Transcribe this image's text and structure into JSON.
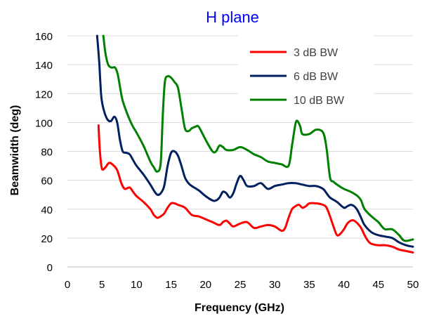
{
  "chart_data": {
    "type": "line",
    "title": "H plane",
    "xlabel": "Frequency  (GHz)",
    "ylabel": "Beamwidth  (deg)",
    "xlim": [
      0,
      50
    ],
    "ylim": [
      0,
      160
    ],
    "xticks": [
      0,
      5,
      10,
      15,
      20,
      25,
      30,
      35,
      40,
      45,
      50
    ],
    "yticks": [
      0,
      20,
      40,
      60,
      80,
      100,
      120,
      140,
      160
    ],
    "grid": {
      "x": false,
      "y": true
    },
    "legend_position": "top-right",
    "series": [
      {
        "name": "3 dB BW",
        "color": "#ff0000",
        "points": [
          [
            4.5,
            98
          ],
          [
            4.7,
            80
          ],
          [
            5.0,
            68
          ],
          [
            5.5,
            69
          ],
          [
            6.0,
            72
          ],
          [
            6.5,
            71
          ],
          [
            7.2,
            67
          ],
          [
            7.8,
            58
          ],
          [
            8.3,
            54
          ],
          [
            9.0,
            55
          ],
          [
            9.5,
            52
          ],
          [
            10.0,
            49
          ],
          [
            11.0,
            45
          ],
          [
            12.0,
            40
          ],
          [
            12.5,
            36
          ],
          [
            13.0,
            34
          ],
          [
            13.5,
            35
          ],
          [
            14.0,
            37
          ],
          [
            14.5,
            41
          ],
          [
            15.0,
            44
          ],
          [
            15.5,
            44
          ],
          [
            16.0,
            43
          ],
          [
            17.0,
            41
          ],
          [
            18.0,
            36
          ],
          [
            19.0,
            35
          ],
          [
            20.0,
            33
          ],
          [
            21.0,
            31
          ],
          [
            22.0,
            29
          ],
          [
            22.5,
            31
          ],
          [
            23.0,
            32
          ],
          [
            23.5,
            30
          ],
          [
            24.0,
            28
          ],
          [
            25.0,
            30
          ],
          [
            26.0,
            31
          ],
          [
            27.0,
            27
          ],
          [
            28.0,
            28
          ],
          [
            29.0,
            29
          ],
          [
            30.0,
            28
          ],
          [
            31.0,
            25
          ],
          [
            31.5,
            27
          ],
          [
            32.0,
            34
          ],
          [
            32.5,
            40
          ],
          [
            33.0,
            42
          ],
          [
            33.5,
            43
          ],
          [
            34.0,
            41
          ],
          [
            34.5,
            42
          ],
          [
            35.0,
            44
          ],
          [
            36.0,
            44
          ],
          [
            37.0,
            43
          ],
          [
            37.5,
            41
          ],
          [
            38.0,
            35
          ],
          [
            38.5,
            28
          ],
          [
            39.0,
            22
          ],
          [
            39.5,
            23
          ],
          [
            40.0,
            26
          ],
          [
            40.5,
            30
          ],
          [
            41.0,
            32
          ],
          [
            41.5,
            32
          ],
          [
            42.0,
            30
          ],
          [
            42.5,
            27
          ],
          [
            43.0,
            22
          ],
          [
            43.5,
            18
          ],
          [
            44.0,
            16
          ],
          [
            45.0,
            15
          ],
          [
            46.0,
            15
          ],
          [
            47.0,
            14
          ],
          [
            48.0,
            12
          ],
          [
            49.0,
            11
          ],
          [
            50.0,
            10
          ]
        ]
      },
      {
        "name": "6 dB BW",
        "color": "#002060",
        "points": [
          [
            4.3,
            160
          ],
          [
            4.6,
            142
          ],
          [
            4.9,
            118
          ],
          [
            5.3,
            108
          ],
          [
            5.8,
            102
          ],
          [
            6.3,
            101
          ],
          [
            6.8,
            104
          ],
          [
            7.2,
            100
          ],
          [
            7.6,
            88
          ],
          [
            8.0,
            80
          ],
          [
            8.5,
            79
          ],
          [
            9.0,
            78
          ],
          [
            9.5,
            74
          ],
          [
            10.0,
            70
          ],
          [
            11.0,
            64
          ],
          [
            12.0,
            57
          ],
          [
            12.5,
            53
          ],
          [
            13.0,
            50
          ],
          [
            13.5,
            51
          ],
          [
            14.0,
            56
          ],
          [
            14.5,
            70
          ],
          [
            15.0,
            79
          ],
          [
            15.5,
            80
          ],
          [
            16.0,
            77
          ],
          [
            16.5,
            70
          ],
          [
            17.0,
            62
          ],
          [
            17.5,
            58
          ],
          [
            18.0,
            56
          ],
          [
            19.0,
            53
          ],
          [
            20.0,
            49
          ],
          [
            21.0,
            46
          ],
          [
            21.5,
            46
          ],
          [
            22.0,
            48
          ],
          [
            22.5,
            52
          ],
          [
            23.0,
            51
          ],
          [
            23.5,
            48
          ],
          [
            24.0,
            51
          ],
          [
            24.5,
            58
          ],
          [
            25.0,
            63
          ],
          [
            25.5,
            60
          ],
          [
            26.0,
            56
          ],
          [
            27.0,
            56
          ],
          [
            28.0,
            58
          ],
          [
            29.0,
            54
          ],
          [
            30.0,
            56
          ],
          [
            31.0,
            57
          ],
          [
            32.0,
            58
          ],
          [
            33.0,
            58
          ],
          [
            34.0,
            57
          ],
          [
            35.0,
            56
          ],
          [
            36.0,
            56
          ],
          [
            37.0,
            54
          ],
          [
            37.5,
            51
          ],
          [
            38.0,
            48
          ],
          [
            39.0,
            45
          ],
          [
            40.0,
            41
          ],
          [
            40.5,
            42
          ],
          [
            41.0,
            43
          ],
          [
            41.5,
            42
          ],
          [
            42.0,
            39
          ],
          [
            42.5,
            34
          ],
          [
            43.0,
            29
          ],
          [
            44.0,
            24
          ],
          [
            45.0,
            22
          ],
          [
            46.0,
            21
          ],
          [
            47.0,
            20
          ],
          [
            48.0,
            17
          ],
          [
            49.0,
            15
          ],
          [
            50.0,
            14
          ]
        ]
      },
      {
        "name": "10 dB BW",
        "color": "#008000",
        "points": [
          [
            5.2,
            160
          ],
          [
            5.5,
            148
          ],
          [
            5.9,
            140
          ],
          [
            6.4,
            138
          ],
          [
            6.9,
            138
          ],
          [
            7.3,
            133
          ],
          [
            7.7,
            122
          ],
          [
            8.0,
            115
          ],
          [
            8.5,
            108
          ],
          [
            9.0,
            102
          ],
          [
            9.5,
            97
          ],
          [
            10.0,
            93
          ],
          [
            11.0,
            84
          ],
          [
            12.0,
            73
          ],
          [
            12.5,
            69
          ],
          [
            13.0,
            66
          ],
          [
            13.5,
            72
          ],
          [
            13.8,
            105
          ],
          [
            14.1,
            128
          ],
          [
            14.5,
            132
          ],
          [
            15.0,
            131
          ],
          [
            15.5,
            128
          ],
          [
            16.0,
            124
          ],
          [
            16.5,
            110
          ],
          [
            17.0,
            96
          ],
          [
            17.5,
            94
          ],
          [
            18.0,
            96
          ],
          [
            18.5,
            97
          ],
          [
            19.0,
            97
          ],
          [
            20.0,
            88
          ],
          [
            21.0,
            80
          ],
          [
            21.5,
            80
          ],
          [
            22.0,
            84
          ],
          [
            22.5,
            83
          ],
          [
            23.0,
            81
          ],
          [
            24.0,
            81
          ],
          [
            25.0,
            83
          ],
          [
            26.0,
            81
          ],
          [
            27.0,
            78
          ],
          [
            28.0,
            76
          ],
          [
            29.0,
            73
          ],
          [
            30.0,
            72
          ],
          [
            31.0,
            71
          ],
          [
            32.0,
            70
          ],
          [
            32.5,
            84
          ],
          [
            33.0,
            99
          ],
          [
            33.3,
            101
          ],
          [
            33.7,
            97
          ],
          [
            34.0,
            92
          ],
          [
            35.0,
            92
          ],
          [
            36.0,
            95
          ],
          [
            37.0,
            93
          ],
          [
            37.5,
            82
          ],
          [
            38.0,
            62
          ],
          [
            38.5,
            59
          ],
          [
            39.0,
            57
          ],
          [
            40.0,
            54
          ],
          [
            41.0,
            52
          ],
          [
            42.0,
            49
          ],
          [
            42.5,
            46
          ],
          [
            43.0,
            40
          ],
          [
            44.0,
            35
          ],
          [
            45.0,
            31
          ],
          [
            45.5,
            28
          ],
          [
            46.0,
            26
          ],
          [
            47.0,
            26
          ],
          [
            48.0,
            22
          ],
          [
            48.5,
            19
          ],
          [
            49.0,
            18
          ],
          [
            50.0,
            19
          ]
        ]
      }
    ]
  }
}
